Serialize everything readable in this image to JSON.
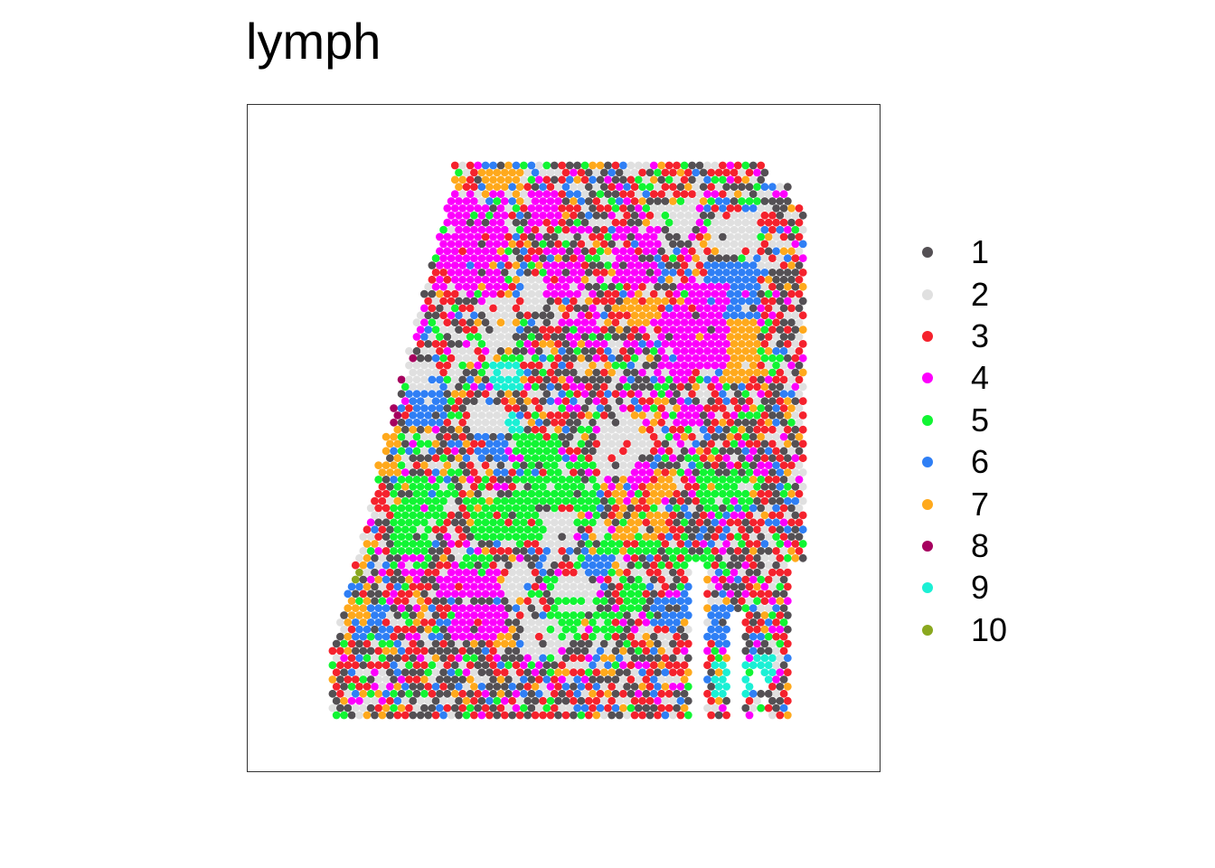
{
  "chart_data": {
    "type": "scatter",
    "title": "lymph",
    "xlabel": "",
    "ylabel": "",
    "axes_shown": false,
    "grid": false,
    "legend_position": "right",
    "legend": {
      "title": "",
      "entries": [
        {
          "label": "1",
          "color": "#545054"
        },
        {
          "label": "2",
          "color": "#e0e0e0"
        },
        {
          "label": "3",
          "color": "#f5222d"
        },
        {
          "label": "4",
          "color": "#fd00fd"
        },
        {
          "label": "5",
          "color": "#11f533"
        },
        {
          "label": "6",
          "color": "#2f7ff5"
        },
        {
          "label": "7",
          "color": "#ffa91c"
        },
        {
          "label": "8",
          "color": "#a6005f"
        },
        {
          "label": "9",
          "color": "#1bf0d5"
        },
        {
          "label": "10",
          "color": "#8aa81f"
        }
      ]
    },
    "spot_grid": {
      "cols": 64,
      "rows": 78,
      "layout": "hexagonal",
      "xlim": [
        0,
        64
      ],
      "ylim": [
        0,
        78
      ]
    },
    "clusters": [
      {
        "cluster": "4",
        "regions": [
          [
            14,
            4,
            24,
            10
          ],
          [
            28,
            4,
            31,
            8
          ],
          [
            16,
            11,
            24,
            17
          ],
          [
            39,
            9,
            44,
            16
          ],
          [
            30,
            14,
            34,
            18
          ],
          [
            47,
            17,
            53,
            28
          ],
          [
            45,
            21,
            48,
            30
          ],
          [
            33,
            21,
            36,
            25
          ],
          [
            16,
            57,
            23,
            60
          ],
          [
            11,
            55,
            13,
            57
          ],
          [
            18,
            62,
            24,
            66
          ],
          [
            4,
            24,
            7,
            27
          ],
          [
            42,
            42,
            43,
            44
          ],
          [
            41,
            43,
            42,
            46
          ],
          [
            47,
            34,
            51,
            36
          ],
          [
            9,
            26,
            10,
            30
          ]
        ]
      },
      {
        "cluster": "7",
        "regions": [
          [
            10,
            1,
            18,
            3
          ],
          [
            22,
            1,
            26,
            4
          ],
          [
            7,
            7,
            10,
            10
          ],
          [
            52,
            22,
            57,
            26
          ],
          [
            8,
            37,
            10,
            43
          ],
          [
            4,
            61,
            6,
            64
          ],
          [
            43,
            43,
            46,
            47
          ],
          [
            53,
            23,
            57,
            30
          ],
          [
            39,
            49,
            45,
            52
          ],
          [
            22,
            65,
            25,
            67
          ],
          [
            40,
            19,
            45,
            22
          ]
        ]
      },
      {
        "cluster": "2",
        "regions": [
          [
            37,
            36,
            42,
            43
          ],
          [
            12,
            28,
            15,
            31
          ],
          [
            18,
            24,
            20,
            27
          ],
          [
            22,
            19,
            25,
            25
          ],
          [
            27,
            16,
            29,
            20
          ],
          [
            52,
            7,
            57,
            12
          ],
          [
            20,
            34,
            24,
            37
          ],
          [
            29,
            49,
            33,
            53
          ],
          [
            23,
            56,
            27,
            60
          ],
          [
            27,
            64,
            31,
            68
          ],
          [
            31,
            58,
            36,
            62
          ],
          [
            44,
            6,
            49,
            9
          ]
        ]
      },
      {
        "cluster": "5",
        "regions": [
          [
            20,
            47,
            26,
            52
          ],
          [
            26,
            38,
            31,
            52
          ],
          [
            31,
            44,
            36,
            50
          ],
          [
            37,
            52,
            44,
            54
          ],
          [
            50,
            43,
            56,
            48
          ],
          [
            10,
            50,
            14,
            56
          ],
          [
            10,
            44,
            16,
            50
          ],
          [
            30,
            58,
            34,
            66
          ],
          [
            45,
            54,
            51,
            56
          ],
          [
            36,
            63,
            38,
            66
          ],
          [
            40,
            58,
            42,
            62
          ],
          [
            18,
            55,
            22,
            57
          ]
        ]
      },
      {
        "cluster": "6",
        "regions": [
          [
            12,
            30,
            16,
            36
          ],
          [
            21,
            34,
            24,
            41
          ],
          [
            44,
            61,
            50,
            64
          ],
          [
            51,
            62,
            55,
            66
          ],
          [
            52,
            63,
            55,
            67
          ],
          [
            5,
            62,
            9,
            66
          ],
          [
            13,
            45,
            15,
            47
          ],
          [
            35,
            54,
            38,
            57
          ],
          [
            51,
            14,
            57,
            22
          ]
        ]
      },
      {
        "cluster": "8",
        "regions": [
          [
            6,
            29,
            10,
            38
          ],
          [
            8,
            27,
            12,
            30
          ],
          [
            21,
            36,
            22,
            38
          ]
        ]
      },
      {
        "cluster": "9",
        "regions": [
          [
            23,
            28,
            26,
            31
          ],
          [
            24,
            35,
            26,
            37
          ],
          [
            52,
            70,
            56,
            74
          ],
          [
            57,
            69,
            59,
            72
          ]
        ]
      },
      {
        "cluster": "10",
        "regions": [
          [
            0,
            57,
            3,
            60
          ],
          [
            2,
            56,
            5,
            58
          ]
        ]
      }
    ]
  },
  "image": {
    "alt": ""
  }
}
